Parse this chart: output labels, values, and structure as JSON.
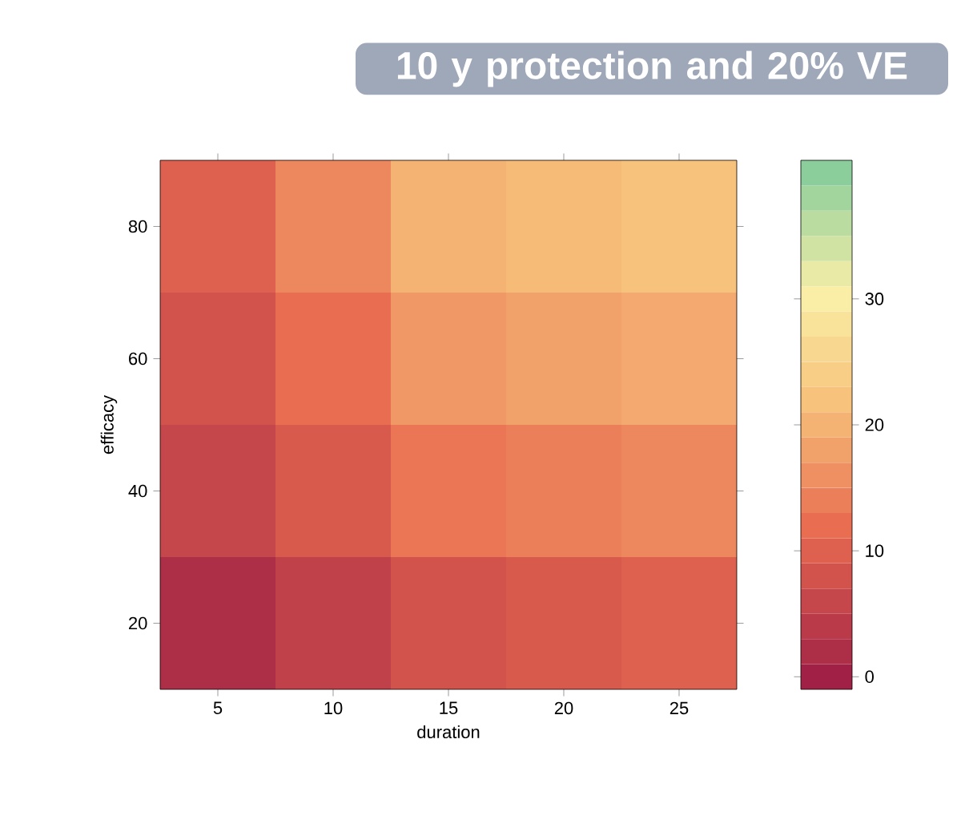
{
  "chart_data": {
    "type": "heatmap",
    "xlabel": "duration",
    "ylabel": "efficacy",
    "categories": [
      "5",
      "10",
      "15",
      "20",
      "25"
    ],
    "y_categories": [
      "80",
      "60",
      "40",
      "20"
    ],
    "cells": [
      [
        10,
        15,
        20,
        21,
        22
      ],
      [
        8,
        12,
        17,
        18,
        19
      ],
      [
        6,
        9,
        13,
        14,
        15
      ],
      [
        2,
        5,
        8,
        9,
        10
      ]
    ],
    "clim": [
      -1,
      41
    ],
    "cticks": [
      0,
      10,
      20,
      30
    ],
    "annotations": [
      "10 y protection and 20% VE"
    ]
  }
}
